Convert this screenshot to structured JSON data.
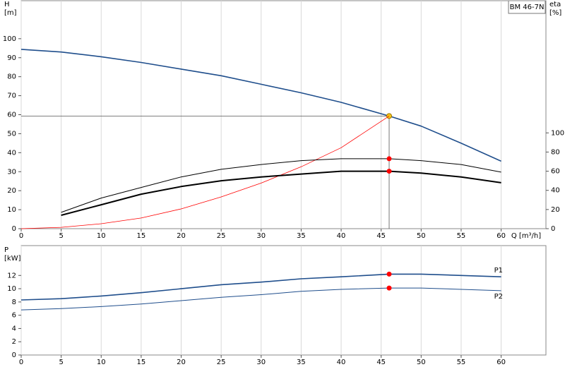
{
  "chart_data": [
    {
      "type": "line",
      "title": "BM 46-7N",
      "ylabel": [
        "H",
        "[m]"
      ],
      "y2label": [
        "eta",
        "[%]"
      ],
      "xlabel": "Q [m³/h]",
      "x": [
        0,
        5,
        10,
        15,
        20,
        25,
        30,
        35,
        40,
        46,
        50,
        55,
        60
      ],
      "xlim": [
        0,
        65.6
      ],
      "xticks": [
        0,
        5,
        10,
        15,
        20,
        25,
        30,
        35,
        40,
        45,
        50,
        55,
        60
      ],
      "ylim": [
        0,
        120
      ],
      "yticks": [
        0,
        10,
        20,
        30,
        40,
        50,
        60,
        70,
        80,
        90,
        100
      ],
      "y2lim": [
        0,
        238
      ],
      "y2ticks": [
        0,
        20,
        40,
        60,
        80,
        100
      ],
      "grid": true,
      "duty_x": 46,
      "duty_lines": true,
      "series": [
        {
          "color": "#1f4e8c",
          "width": 1.6,
          "marker_color": "#f5c518",
          "values": [
            94.4,
            93,
            90.5,
            87.5,
            84,
            80.5,
            76,
            71.5,
            66.5,
            59.3,
            54,
            45,
            35.5
          ]
        },
        {
          "color": "#ff0000",
          "width": 0.8,
          "values": [
            0,
            0.7,
            2.6,
            5.6,
            10.4,
            16.7,
            24,
            32.6,
            42.6,
            59.3,
            null,
            null,
            null
          ]
        },
        {
          "color": "#000000",
          "width": 1,
          "axis": "y2",
          "marker_color": "#ff0000",
          "values": [
            null,
            17,
            32,
            43,
            54,
            62,
            67,
            71,
            73,
            73,
            71,
            67,
            59
          ]
        },
        {
          "color": "#000000",
          "width": 2,
          "axis": "y2",
          "marker_color": "#ff0000",
          "values": [
            null,
            14,
            25,
            36,
            44,
            50,
            54,
            57,
            60,
            60,
            58,
            54,
            48
          ]
        }
      ]
    },
    {
      "type": "line",
      "ylabel": [
        "P",
        "[kW]"
      ],
      "x": [
        0,
        5,
        10,
        15,
        20,
        25,
        30,
        35,
        40,
        46,
        50,
        55,
        60
      ],
      "xlim": [
        0,
        65.6
      ],
      "xticks": [
        0,
        5,
        10,
        15,
        20,
        25,
        30,
        35,
        40,
        45,
        50,
        55,
        60
      ],
      "ylim": [
        0,
        16.5
      ],
      "yticks": [
        0,
        2,
        4,
        6,
        8,
        10,
        12
      ],
      "grid": true,
      "duty_x": 46,
      "duty_lines": false,
      "series": [
        {
          "name": "P1",
          "color": "#1f4e8c",
          "width": 1.6,
          "marker_color": "#ff0000",
          "values": [
            8.3,
            8.5,
            8.9,
            9.4,
            10,
            10.6,
            11,
            11.5,
            11.8,
            12.2,
            12.2,
            12,
            11.8
          ]
        },
        {
          "name": "P2",
          "color": "#1f4e8c",
          "width": 1,
          "marker_color": "#ff0000",
          "values": [
            6.8,
            7,
            7.3,
            7.7,
            8.2,
            8.7,
            9.1,
            9.6,
            9.9,
            10.1,
            10.1,
            9.9,
            9.7
          ]
        }
      ]
    }
  ]
}
